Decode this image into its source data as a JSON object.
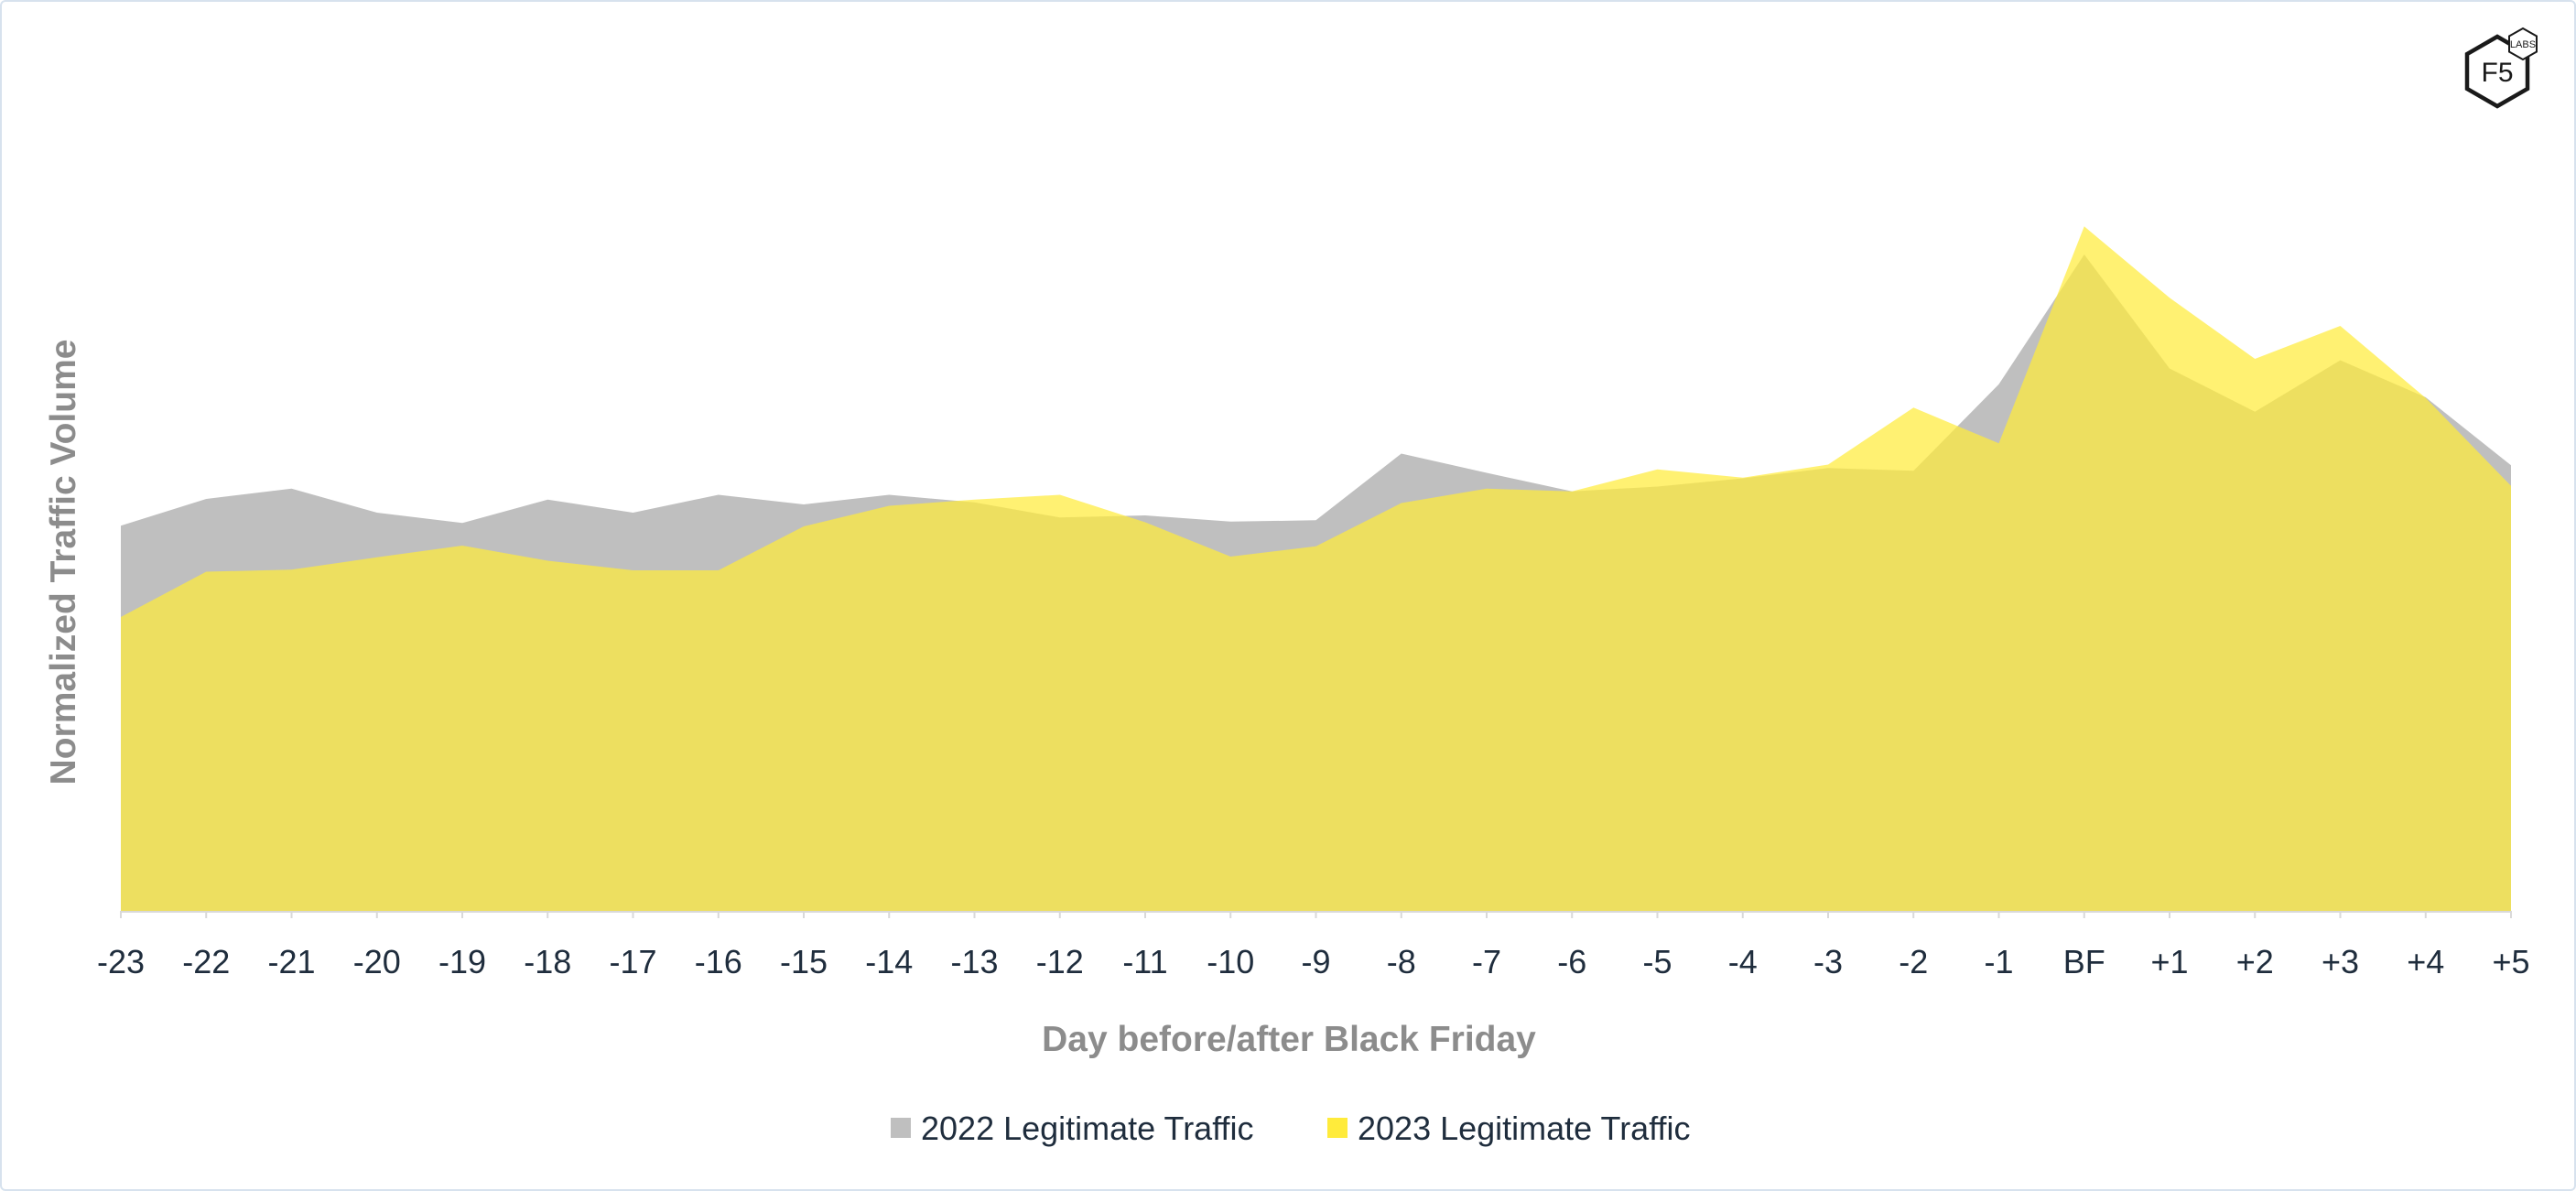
{
  "chart_data": {
    "type": "area",
    "title": "",
    "xlabel": "Day before/after Black Friday",
    "ylabel": "Normalized Traffic Volume",
    "categories": [
      "-23",
      "-22",
      "-21",
      "-20",
      "-19",
      "-18",
      "-17",
      "-16",
      "-15",
      "-14",
      "-13",
      "-12",
      "-11",
      "-10",
      "-9",
      "-8",
      "-7",
      "-6",
      "-5",
      "-4",
      "-3",
      "-2",
      "-1",
      "BF",
      "+1",
      "+2",
      "+3",
      "+4",
      "+5"
    ],
    "ylim": [
      0,
      1000
    ],
    "grid": false,
    "legend_position": "bottom",
    "series": [
      {
        "name": "2022 Legitimate Traffic",
        "color": "#bfbfbf",
        "values": [
          561,
          600,
          615,
          580,
          565,
          599,
          580,
          606,
          592,
          606,
          595,
          573,
          576,
          567,
          569,
          666,
          638,
          611,
          618,
          630,
          645,
          641,
          767,
          956,
          790,
          727,
          802,
          748,
          649
        ]
      },
      {
        "name": "2023 Legitimate Traffic",
        "color": "#ffeb3b",
        "values": [
          428,
          494,
          497,
          515,
          532,
          510,
          496,
          496,
          560,
          590,
          599,
          606,
          566,
          516,
          531,
          594,
          615,
          611,
          643,
          631,
          650,
          733,
          681,
          997,
          893,
          804,
          852,
          747,
          619
        ]
      }
    ]
  },
  "logo": {
    "text": "F5",
    "badge": "LABS"
  }
}
